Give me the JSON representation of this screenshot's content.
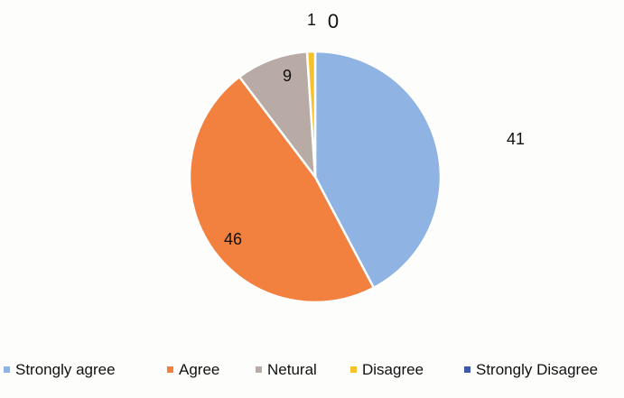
{
  "chart_data": {
    "type": "pie",
    "series": [
      {
        "values": [
          41,
          46,
          9,
          1,
          0
        ],
        "labels": [
          "Strongly agree",
          "Agree",
          "Netural",
          "Disagree",
          "Strongly Disagree"
        ]
      }
    ],
    "slices": [
      {
        "name": "Strongly agree",
        "value": 41,
        "value_label": "41",
        "color": "#8fb3e3"
      },
      {
        "name": "Agree",
        "value": 46,
        "value_label": "46",
        "color": "#f2813f"
      },
      {
        "name": "Netural",
        "value": 9,
        "value_label": "9",
        "color": "#b8aaa4"
      },
      {
        "name": "Disagree",
        "value": 1,
        "value_label": "1",
        "color": "#f5c22c"
      },
      {
        "name": "Strongly Disagree",
        "value": 0,
        "value_label": "0",
        "color": "#3b5aa8"
      }
    ],
    "legend": {
      "placement": "bottom",
      "entries": [
        "Strongly agree",
        "Agree",
        "Netural",
        "Disagree",
        "Strongly Disagree"
      ]
    }
  }
}
